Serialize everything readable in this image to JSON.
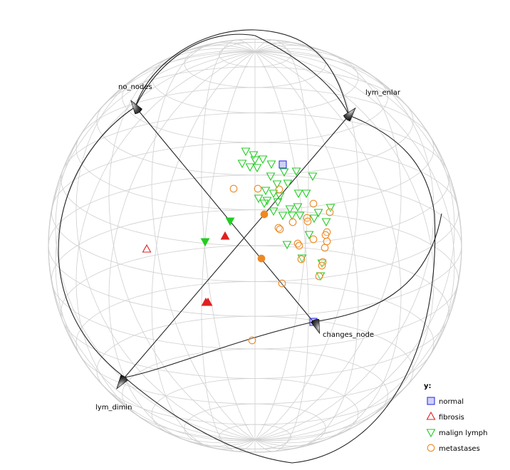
{
  "chart_data": {
    "type": "scatter",
    "title": "",
    "axes": [
      {
        "name": "no_nodes"
      },
      {
        "name": "lym_enlar"
      },
      {
        "name": "lym_dimin"
      },
      {
        "name": "changes_node"
      }
    ],
    "legend": {
      "title": "y:",
      "placement": "bottom-right",
      "entries": [
        {
          "label": "normal",
          "marker": "square",
          "color": "#3333dd"
        },
        {
          "label": "fibrosis",
          "marker": "triangle-up",
          "color": "#e02020"
        },
        {
          "label": "malign lymph",
          "marker": "triangle-down",
          "color": "#22cc22"
        },
        {
          "label": "metastases",
          "marker": "circle",
          "color": "#ee8822"
        }
      ]
    },
    "series": [
      {
        "class": "normal",
        "points": [
          [
            397,
            231
          ],
          [
            440,
            452
          ]
        ]
      },
      {
        "class": "fibrosis",
        "filled_points": [
          [
            316,
            332
          ],
          [
            289,
            425
          ],
          [
            292,
            425
          ]
        ],
        "hollow_points": [
          [
            206,
            350
          ]
        ]
      },
      {
        "class": "malign lymph",
        "filled_points": [
          [
            323,
            310
          ],
          [
            288,
            339
          ]
        ],
        "hollow_points": [
          [
            345,
            212
          ],
          [
            356,
            217
          ],
          [
            369,
            223
          ],
          [
            358,
            224
          ],
          [
            340,
            229
          ],
          [
            381,
            230
          ],
          [
            351,
            234
          ],
          [
            361,
            235
          ],
          [
            399,
            241
          ],
          [
            416,
            240
          ],
          [
            439,
            247
          ],
          [
            380,
            247
          ],
          [
            389,
            258
          ],
          [
            404,
            257
          ],
          [
            373,
            267
          ],
          [
            384,
            271
          ],
          [
            393,
            275
          ],
          [
            419,
            271
          ],
          [
            430,
            271
          ],
          [
            363,
            278
          ],
          [
            375,
            281
          ],
          [
            390,
            283
          ],
          [
            371,
            285
          ],
          [
            418,
            290
          ],
          [
            407,
            293
          ],
          [
            384,
            296
          ],
          [
            397,
            302
          ],
          [
            410,
            302
          ],
          [
            421,
            302
          ],
          [
            447,
            298
          ],
          [
            464,
            291
          ],
          [
            441,
            306
          ],
          [
            458,
            311
          ],
          [
            434,
            329
          ],
          [
            403,
            343
          ],
          [
            424,
            362
          ],
          [
            452,
            369
          ],
          [
            450,
            387
          ]
        ]
      },
      {
        "class": "metastases",
        "filled_points": [
          [
            371,
            301
          ],
          [
            367,
            363
          ]
        ],
        "hollow_points": [
          [
            328,
            265
          ],
          [
            362,
            265
          ],
          [
            392,
            266
          ],
          [
            440,
            286
          ],
          [
            463,
            298
          ],
          [
            431,
            306
          ],
          [
            411,
            312
          ],
          [
            432,
            311
          ],
          [
            391,
            320
          ],
          [
            393,
            322
          ],
          [
            459,
            326
          ],
          [
            457,
            330
          ],
          [
            440,
            336
          ],
          [
            459,
            339
          ],
          [
            418,
            342
          ],
          [
            420,
            345
          ],
          [
            456,
            348
          ],
          [
            423,
            364
          ],
          [
            453,
            368
          ],
          [
            452,
            373
          ],
          [
            448,
            388
          ],
          [
            396,
            398
          ],
          [
            354,
            478
          ]
        ]
      }
    ]
  }
}
